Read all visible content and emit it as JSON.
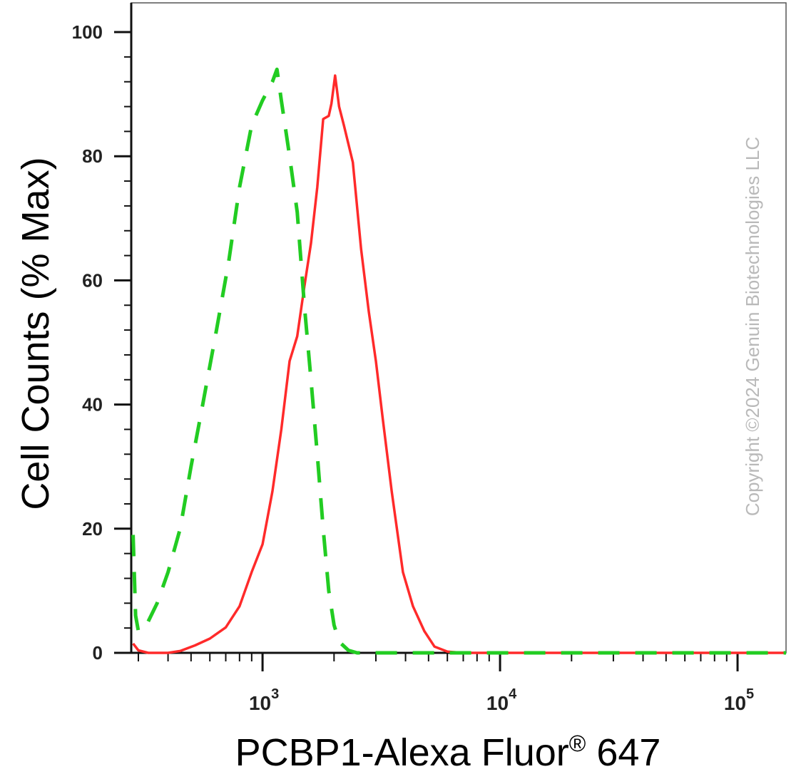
{
  "chart_data": {
    "type": "line",
    "title": "",
    "xlabel_main": "PCBP1-Alexa Fluor",
    "xlabel_mark": "®",
    "xlabel_tail": " 647",
    "ylabel": "Cell Counts (% Max)",
    "xscale": "log",
    "xlim": [
      280,
      160000
    ],
    "ylim": [
      0,
      100
    ],
    "grid": false,
    "legend": "none",
    "x_ticks": [
      {
        "value": 1000,
        "base": "10",
        "exp": "3"
      },
      {
        "value": 10000,
        "base": "10",
        "exp": "4"
      },
      {
        "value": 100000,
        "base": "10",
        "exp": "5"
      }
    ],
    "y_ticks": [
      {
        "value": 0,
        "label": "0"
      },
      {
        "value": 20,
        "label": "20"
      },
      {
        "value": 40,
        "label": "40"
      },
      {
        "value": 60,
        "label": "60"
      },
      {
        "value": 80,
        "label": "80"
      },
      {
        "value": 100,
        "label": "100"
      }
    ],
    "series": [
      {
        "color": "#ff2a2a",
        "dash": "solid",
        "points": [
          [
            285,
            1.5
          ],
          [
            300,
            0.4
          ],
          [
            330,
            0
          ],
          [
            400,
            0
          ],
          [
            450,
            0.3
          ],
          [
            520,
            1.2
          ],
          [
            600,
            2.3
          ],
          [
            700,
            4.1
          ],
          [
            800,
            7.5
          ],
          [
            900,
            13.0
          ],
          [
            1000,
            17.5
          ],
          [
            1100,
            26.0
          ],
          [
            1200,
            36.0
          ],
          [
            1300,
            47.0
          ],
          [
            1400,
            51.0
          ],
          [
            1500,
            59.0
          ],
          [
            1600,
            66.0
          ],
          [
            1700,
            75.0
          ],
          [
            1800,
            86.0
          ],
          [
            1900,
            86.5
          ],
          [
            1950,
            88.5
          ],
          [
            2020,
            93.0
          ],
          [
            2100,
            88.0
          ],
          [
            2200,
            85.0
          ],
          [
            2400,
            79.0
          ],
          [
            2600,
            65.0
          ],
          [
            2800,
            55.0
          ],
          [
            3000,
            47.0
          ],
          [
            3200,
            38.0
          ],
          [
            3500,
            26.0
          ],
          [
            3900,
            13.0
          ],
          [
            4300,
            7.5
          ],
          [
            4800,
            3.5
          ],
          [
            5300,
            1.0
          ],
          [
            6000,
            0.2
          ],
          [
            7000,
            0
          ],
          [
            160000,
            0
          ]
        ]
      },
      {
        "color": "#22cc22",
        "dash": "dashed",
        "points": [
          [
            285,
            19.0
          ],
          [
            292,
            6.0
          ],
          [
            300,
            3.5
          ],
          [
            320,
            4.0
          ],
          [
            360,
            8.0
          ],
          [
            400,
            13.0
          ],
          [
            450,
            20.0
          ],
          [
            500,
            30.0
          ],
          [
            560,
            40.0
          ],
          [
            640,
            52.0
          ],
          [
            720,
            63.0
          ],
          [
            800,
            75.0
          ],
          [
            900,
            85.0
          ],
          [
            1000,
            89.0
          ],
          [
            1100,
            92.0
          ],
          [
            1150,
            94.0
          ],
          [
            1200,
            89.0
          ],
          [
            1300,
            80.0
          ],
          [
            1400,
            71.0
          ],
          [
            1500,
            56.0
          ],
          [
            1600,
            44.0
          ],
          [
            1700,
            32.0
          ],
          [
            1800,
            20.0
          ],
          [
            1900,
            10.0
          ],
          [
            2000,
            4.5
          ],
          [
            2100,
            1.8
          ],
          [
            2300,
            0.4
          ],
          [
            2500,
            0
          ],
          [
            160000,
            0
          ]
        ]
      }
    ]
  },
  "watermark": "Copyright ©2024 Genuin Biotechnologies LLC"
}
